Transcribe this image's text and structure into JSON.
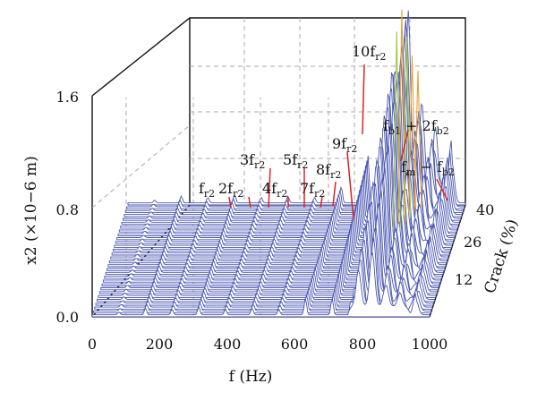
{
  "chart_data": {
    "type": "waterfall-3d",
    "x_axis": {
      "label": "f (Hz)",
      "range": [
        0,
        1000
      ],
      "ticks": [
        "0",
        "200",
        "400",
        "600",
        "800",
        "1000"
      ]
    },
    "y_axis": {
      "label": "x2 (×10−6 m)",
      "range": [
        0,
        1.6
      ],
      "ticks": [
        "0.0",
        "0.8",
        "1.6"
      ]
    },
    "depth_axis": {
      "label": "Crack (%)",
      "range": [
        0,
        40
      ],
      "ticks": [
        "12",
        "26",
        "40"
      ]
    },
    "grid": true,
    "colors": {
      "spectrum": "#4a56b2",
      "peak_high": "#e8a038",
      "peak_green": "#9fc94a",
      "marker": "#dd2222"
    },
    "x_values": [
      79,
      158,
      237,
      316,
      395,
      474,
      553,
      632,
      711,
      790,
      830,
      870,
      910,
      960
    ],
    "series_40pct": [
      0.02,
      0.05,
      0.04,
      0.06,
      0.04,
      0.05,
      0.04,
      0.12,
      0.35,
      0.9,
      1.3,
      0.6,
      0.4,
      0.3
    ],
    "annotations": [
      {
        "main": "f",
        "sub": "r2"
      },
      {
        "main": "2f",
        "sub": "r2"
      },
      {
        "main": "3f",
        "sub": "r2"
      },
      {
        "main": "4f",
        "sub": "r2"
      },
      {
        "main": "5f",
        "sub": "r2"
      },
      {
        "main": "7f",
        "sub": "r2"
      },
      {
        "main": "8f",
        "sub": "r2"
      },
      {
        "main": "9f",
        "sub": "r2"
      },
      {
        "main": "10f",
        "sub": "r2"
      },
      {
        "main": "f",
        "sub": "b1",
        "mid": " + 2f",
        "sub2": "b2"
      },
      {
        "main": "f",
        "sub": "m",
        "mid": " − f",
        "sub2": "b2"
      }
    ]
  }
}
